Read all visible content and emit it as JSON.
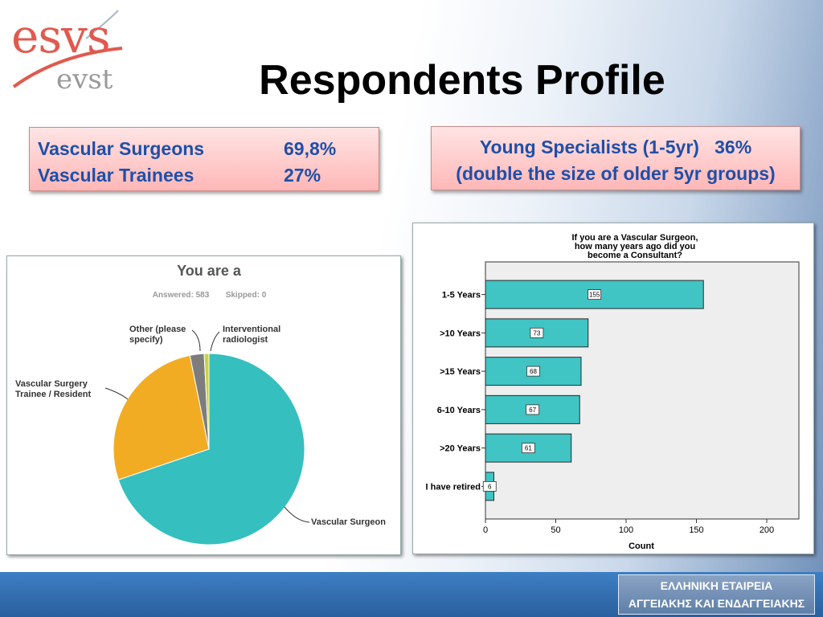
{
  "logo": {
    "main": "esvs",
    "sub": "evst"
  },
  "title": "Respondents Profile",
  "stats_box": {
    "rows": [
      {
        "label": "Vascular Surgeons",
        "value": "69,8%"
      },
      {
        "label": "Vascular Trainees",
        "value": "27%"
      }
    ]
  },
  "note_box": {
    "line1": "Young Specialists (1-5yr)   36%",
    "line2": "(double the size of older 5yr groups)"
  },
  "colors": {
    "box_text": "#1f4fa8",
    "bar": "#40c4c4",
    "pie_surgeon": "#35bfbf",
    "pie_trainee": "#f2ac23",
    "pie_other": "#7d7d7d",
    "pie_interventional": "#c9d43a"
  },
  "chart_data": [
    {
      "type": "pie",
      "title": "You are a",
      "answered_text": "Answered: 583",
      "skipped_text": "Skipped: 0",
      "slices": [
        {
          "label": "Vascular Surgeon",
          "value": 69.8
        },
        {
          "label": "Vascular Surgery Trainee / Resident",
          "value": 27.0
        },
        {
          "label": "Other (please specify)",
          "value": 2.4
        },
        {
          "label": "Interventional radiologist",
          "value": 0.8
        }
      ]
    },
    {
      "type": "bar",
      "orientation": "horizontal",
      "title": [
        "If you are a Vascular Surgeon,",
        "how many years ago did you",
        "become a Consultant?"
      ],
      "xlabel": "Count",
      "categories": [
        "1-5 Years",
        ">10 Years",
        ">15 Years",
        "6-10 Years",
        ">20 Years",
        "I have retired"
      ],
      "values": [
        155,
        73,
        68,
        67,
        61,
        6
      ],
      "xlim": [
        0,
        200
      ],
      "xticks": [
        0,
        50,
        100,
        150,
        200
      ]
    }
  ],
  "footer": {
    "line1": "ΕΛΛΗΝΙΚΗ ΕΤΑΙΡΕΙΑ",
    "line2": "ΑΓΓΕΙΑΚΗΣ ΚΑΙ ΕΝΔΑΓΓΕΙΑΚΗΣ ΧΕΙΡΟΥΡΓΙΚΗΣ"
  }
}
